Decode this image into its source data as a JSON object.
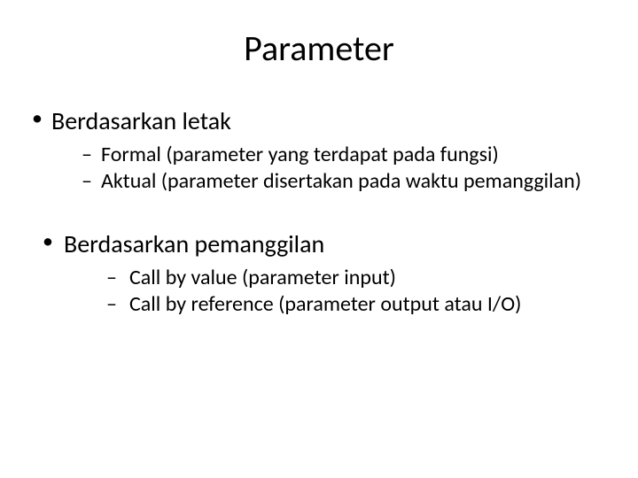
{
  "slide": {
    "title": "Parameter",
    "background_color": "#ffffff",
    "text_color": "#000000",
    "title_fontsize": 40,
    "level1_fontsize": 28,
    "level2_fontsize": 24,
    "font_family": "Calibri",
    "sections": [
      {
        "heading": "Berdasarkan letak",
        "items": [
          "Formal (parameter yang terdapat pada fungsi)",
          "Aktual (parameter disertakan pada waktu pemanggilan)"
        ]
      },
      {
        "heading": "Berdasarkan pemanggilan",
        "items": [
          "Call by value (parameter input)",
          "Call by reference (parameter output atau I/O)"
        ]
      }
    ]
  }
}
